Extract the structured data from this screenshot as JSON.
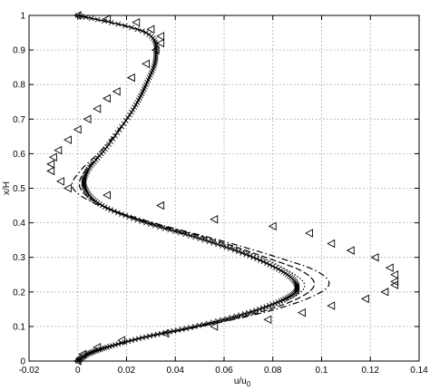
{
  "chart_data": {
    "type": "scatter",
    "title": "",
    "xlabel": "u/u",
    "xlabel_sub": "0",
    "ylabel": "x/H",
    "xlim": [
      -0.02,
      0.14
    ],
    "ylim": [
      0,
      1
    ],
    "xticks": [
      "-0.02",
      "0",
      "0.02",
      "0.04",
      "0.06",
      "0.08",
      "0.1",
      "0.12",
      "0.14"
    ],
    "yticks": [
      "0",
      "0.1",
      "0.2",
      "0.3",
      "0.4",
      "0.5",
      "0.6",
      "0.7",
      "0.8",
      "0.9",
      "1"
    ],
    "grid": true,
    "legend": "none",
    "series": [
      {
        "style": "solid",
        "marker": "x",
        "points": [
          [
            0.0,
            0.0
          ],
          [
            0.004,
            0.02
          ],
          [
            0.012,
            0.04
          ],
          [
            0.028,
            0.07
          ],
          [
            0.048,
            0.1
          ],
          [
            0.07,
            0.14
          ],
          [
            0.085,
            0.18
          ],
          [
            0.09,
            0.21
          ],
          [
            0.086,
            0.25
          ],
          [
            0.072,
            0.3
          ],
          [
            0.052,
            0.35
          ],
          [
            0.028,
            0.4
          ],
          [
            0.01,
            0.45
          ],
          [
            0.003,
            0.5
          ],
          [
            0.004,
            0.55
          ],
          [
            0.012,
            0.62
          ],
          [
            0.022,
            0.72
          ],
          [
            0.028,
            0.8
          ],
          [
            0.032,
            0.88
          ],
          [
            0.028,
            0.95
          ],
          [
            0.0,
            1.0
          ]
        ]
      },
      {
        "style": "dashed",
        "marker": "none",
        "points": [
          [
            0.0,
            0.0
          ],
          [
            0.004,
            0.02
          ],
          [
            0.012,
            0.04
          ],
          [
            0.028,
            0.07
          ],
          [
            0.05,
            0.1
          ],
          [
            0.074,
            0.14
          ],
          [
            0.09,
            0.18
          ],
          [
            0.097,
            0.22
          ],
          [
            0.092,
            0.26
          ],
          [
            0.077,
            0.3
          ],
          [
            0.056,
            0.35
          ],
          [
            0.03,
            0.4
          ],
          [
            0.01,
            0.45
          ],
          [
            0.001,
            0.5
          ],
          [
            0.003,
            0.55
          ],
          [
            0.012,
            0.62
          ],
          [
            0.022,
            0.72
          ],
          [
            0.028,
            0.8
          ],
          [
            0.032,
            0.88
          ],
          [
            0.028,
            0.95
          ],
          [
            0.0,
            1.0
          ]
        ]
      },
      {
        "style": "dashdot",
        "marker": "none",
        "points": [
          [
            0.0,
            0.0
          ],
          [
            0.004,
            0.02
          ],
          [
            0.012,
            0.04
          ],
          [
            0.028,
            0.07
          ],
          [
            0.05,
            0.1
          ],
          [
            0.076,
            0.14
          ],
          [
            0.094,
            0.18
          ],
          [
            0.103,
            0.22
          ],
          [
            0.098,
            0.26
          ],
          [
            0.082,
            0.3
          ],
          [
            0.058,
            0.35
          ],
          [
            0.031,
            0.4
          ],
          [
            0.009,
            0.45
          ],
          [
            -0.002,
            0.5
          ],
          [
            0.001,
            0.55
          ],
          [
            0.011,
            0.62
          ],
          [
            0.022,
            0.72
          ],
          [
            0.028,
            0.8
          ],
          [
            0.032,
            0.88
          ],
          [
            0.028,
            0.95
          ],
          [
            0.0,
            1.0
          ]
        ]
      },
      {
        "style": "dotted",
        "marker": "none",
        "points": [
          [
            0.0,
            0.0
          ],
          [
            0.004,
            0.02
          ],
          [
            0.012,
            0.04
          ],
          [
            0.028,
            0.07
          ],
          [
            0.049,
            0.1
          ],
          [
            0.072,
            0.14
          ],
          [
            0.087,
            0.18
          ],
          [
            0.093,
            0.215
          ],
          [
            0.089,
            0.25
          ],
          [
            0.075,
            0.3
          ],
          [
            0.054,
            0.35
          ],
          [
            0.029,
            0.4
          ],
          [
            0.01,
            0.45
          ],
          [
            0.002,
            0.5
          ],
          [
            0.004,
            0.55
          ],
          [
            0.012,
            0.62
          ],
          [
            0.022,
            0.72
          ],
          [
            0.028,
            0.8
          ],
          [
            0.032,
            0.88
          ],
          [
            0.028,
            0.95
          ],
          [
            0.0,
            1.0
          ]
        ]
      },
      {
        "style": "markers",
        "marker": "triangle-left",
        "points": [
          [
            0.0,
            1.0
          ],
          [
            0.012,
            0.99
          ],
          [
            0.024,
            0.98
          ],
          [
            0.03,
            0.96
          ],
          [
            0.034,
            0.94
          ],
          [
            0.034,
            0.92
          ],
          [
            0.032,
            0.9
          ],
          [
            0.028,
            0.86
          ],
          [
            0.022,
            0.82
          ],
          [
            0.016,
            0.78
          ],
          [
            0.012,
            0.76
          ],
          [
            0.008,
            0.73
          ],
          [
            0.004,
            0.7
          ],
          [
            0.0,
            0.67
          ],
          [
            -0.004,
            0.64
          ],
          [
            -0.008,
            0.61
          ],
          [
            -0.01,
            0.59
          ],
          [
            -0.011,
            0.57
          ],
          [
            -0.011,
            0.55
          ],
          [
            -0.007,
            0.52
          ],
          [
            -0.004,
            0.5
          ],
          [
            0.012,
            0.48
          ],
          [
            0.034,
            0.45
          ],
          [
            0.056,
            0.41
          ],
          [
            0.08,
            0.39
          ],
          [
            0.095,
            0.37
          ],
          [
            0.104,
            0.34
          ],
          [
            0.112,
            0.32
          ],
          [
            0.122,
            0.3
          ],
          [
            0.128,
            0.27
          ],
          [
            0.13,
            0.25
          ],
          [
            0.13,
            0.23
          ],
          [
            0.13,
            0.22
          ],
          [
            0.126,
            0.2
          ],
          [
            0.118,
            0.18
          ],
          [
            0.104,
            0.16
          ],
          [
            0.092,
            0.14
          ],
          [
            0.078,
            0.12
          ],
          [
            0.056,
            0.1
          ],
          [
            0.036,
            0.08
          ],
          [
            0.018,
            0.06
          ],
          [
            0.008,
            0.04
          ],
          [
            0.002,
            0.02
          ],
          [
            0.0,
            0.0
          ]
        ]
      }
    ]
  }
}
